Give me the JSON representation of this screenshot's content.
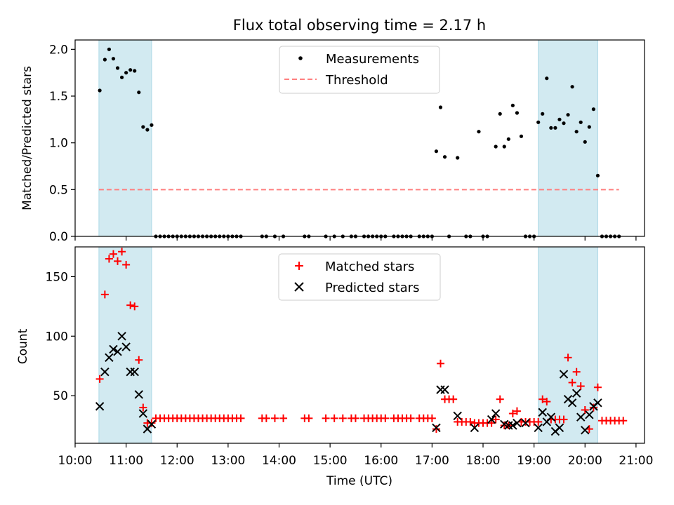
{
  "figure": {
    "title": "Flux total observing time = 2.17 h",
    "xlabel": "Time (UTC)"
  },
  "colors": {
    "shade": "#add8e6",
    "measurement": "#000000",
    "threshold": "#ff7f7f",
    "matched": "#ff0000",
    "predicted": "#000000"
  },
  "chart_data": [
    {
      "type": "scatter",
      "ylabel": "Matched/Predicted stars",
      "xlim": [
        "10:00",
        "21:10"
      ],
      "ylim": [
        0,
        2.1
      ],
      "y_ticks": [
        0.0,
        0.5,
        1.0,
        1.5,
        2.0
      ],
      "legend": "top-center",
      "legend_entries": [
        "Measurements",
        "Threshold"
      ],
      "shaded_intervals": [
        [
          "10:28",
          "11:30"
        ],
        [
          "19:05",
          "20:15"
        ]
      ],
      "threshold": {
        "value": 0.5,
        "x_start": "10:28",
        "x_end": "20:40",
        "label": "Threshold"
      },
      "series": [
        {
          "name": "Measurements",
          "points": [
            [
              "10:29",
              1.56
            ],
            [
              "10:35",
              1.89
            ],
            [
              "10:40",
              2.0
            ],
            [
              "10:45",
              1.9
            ],
            [
              "10:50",
              1.8
            ],
            [
              "10:55",
              1.7
            ],
            [
              "11:00",
              1.75
            ],
            [
              "11:05",
              1.78
            ],
            [
              "11:10",
              1.77
            ],
            [
              "11:15",
              1.54
            ],
            [
              "11:20",
              1.17
            ],
            [
              "11:25",
              1.14
            ],
            [
              "11:30",
              1.19
            ],
            [
              "11:35",
              0
            ],
            [
              "11:40",
              0
            ],
            [
              "11:45",
              0
            ],
            [
              "11:50",
              0
            ],
            [
              "11:55",
              0
            ],
            [
              "12:00",
              0
            ],
            [
              "12:05",
              0
            ],
            [
              "12:10",
              0
            ],
            [
              "12:15",
              0
            ],
            [
              "12:20",
              0
            ],
            [
              "12:25",
              0
            ],
            [
              "12:30",
              0
            ],
            [
              "12:35",
              0
            ],
            [
              "12:40",
              0
            ],
            [
              "12:45",
              0
            ],
            [
              "12:50",
              0
            ],
            [
              "12:55",
              0
            ],
            [
              "13:00",
              0
            ],
            [
              "13:05",
              0
            ],
            [
              "13:10",
              0
            ],
            [
              "13:15",
              0
            ],
            [
              "13:40",
              0
            ],
            [
              "13:45",
              0
            ],
            [
              "13:55",
              0
            ],
            [
              "14:05",
              0
            ],
            [
              "14:30",
              0
            ],
            [
              "14:35",
              0
            ],
            [
              "14:55",
              0
            ],
            [
              "15:05",
              0
            ],
            [
              "15:15",
              0
            ],
            [
              "15:25",
              0
            ],
            [
              "15:30",
              0
            ],
            [
              "15:40",
              0
            ],
            [
              "15:45",
              0
            ],
            [
              "15:50",
              0
            ],
            [
              "15:55",
              0
            ],
            [
              "16:00",
              0
            ],
            [
              "16:05",
              0
            ],
            [
              "16:15",
              0
            ],
            [
              "16:20",
              0
            ],
            [
              "16:25",
              0
            ],
            [
              "16:30",
              0
            ],
            [
              "16:35",
              0
            ],
            [
              "16:45",
              0
            ],
            [
              "16:50",
              0
            ],
            [
              "16:55",
              0
            ],
            [
              "17:00",
              0
            ],
            [
              "17:05",
              0.91
            ],
            [
              "17:10",
              1.38
            ],
            [
              "17:15",
              0.85
            ],
            [
              "17:20",
              0
            ],
            [
              "17:30",
              0.84
            ],
            [
              "17:40",
              0
            ],
            [
              "17:45",
              0
            ],
            [
              "17:55",
              1.12
            ],
            [
              "18:00",
              0
            ],
            [
              "18:05",
              0
            ],
            [
              "18:15",
              0.96
            ],
            [
              "18:20",
              1.31
            ],
            [
              "18:25",
              0.96
            ],
            [
              "18:30",
              1.04
            ],
            [
              "18:35",
              1.4
            ],
            [
              "18:40",
              1.32
            ],
            [
              "18:45",
              1.07
            ],
            [
              "18:50",
              0
            ],
            [
              "18:55",
              0
            ],
            [
              "19:00",
              0
            ],
            [
              "19:05",
              1.22
            ],
            [
              "19:10",
              1.31
            ],
            [
              "19:15",
              1.69
            ],
            [
              "19:20",
              1.16
            ],
            [
              "19:25",
              1.16
            ],
            [
              "19:30",
              1.25
            ],
            [
              "19:35",
              1.21
            ],
            [
              "19:40",
              1.3
            ],
            [
              "19:45",
              1.6
            ],
            [
              "19:50",
              1.12
            ],
            [
              "19:55",
              1.22
            ],
            [
              "20:00",
              1.01
            ],
            [
              "20:05",
              1.17
            ],
            [
              "20:10",
              1.36
            ],
            [
              "20:15",
              0.65
            ],
            [
              "20:20",
              0
            ],
            [
              "20:25",
              0
            ],
            [
              "20:30",
              0
            ],
            [
              "20:35",
              0
            ],
            [
              "20:40",
              0
            ]
          ]
        }
      ]
    },
    {
      "type": "scatter",
      "ylabel": "Count",
      "xlim": [
        "10:00",
        "21:10"
      ],
      "ylim": [
        10,
        175
      ],
      "y_ticks": [
        50,
        100,
        150
      ],
      "x_ticks": [
        "10:00",
        "11:00",
        "12:00",
        "13:00",
        "14:00",
        "15:00",
        "16:00",
        "17:00",
        "18:00",
        "19:00",
        "20:00",
        "21:00"
      ],
      "legend": "top-center",
      "legend_entries": [
        "Matched stars",
        "Predicted stars"
      ],
      "shaded_intervals": [
        [
          "10:28",
          "11:30"
        ],
        [
          "19:05",
          "20:15"
        ]
      ],
      "series": [
        {
          "name": "Matched stars",
          "marker": "plus",
          "points": [
            [
              "10:29",
              64
            ],
            [
              "10:35",
              135
            ],
            [
              "10:40",
              165
            ],
            [
              "10:45",
              169
            ],
            [
              "10:50",
              163
            ],
            [
              "10:55",
              171
            ],
            [
              "11:00",
              160
            ],
            [
              "11:05",
              126
            ],
            [
              "11:10",
              125
            ],
            [
              "11:15",
              80
            ],
            [
              "11:20",
              40
            ],
            [
              "11:25",
              27
            ],
            [
              "11:30",
              27
            ],
            [
              "11:35",
              31
            ],
            [
              "11:40",
              31
            ],
            [
              "11:45",
              31
            ],
            [
              "11:50",
              31
            ],
            [
              "11:55",
              31
            ],
            [
              "12:00",
              31
            ],
            [
              "12:05",
              31
            ],
            [
              "12:10",
              31
            ],
            [
              "12:15",
              31
            ],
            [
              "12:20",
              31
            ],
            [
              "12:25",
              31
            ],
            [
              "12:30",
              31
            ],
            [
              "12:35",
              31
            ],
            [
              "12:40",
              31
            ],
            [
              "12:45",
              31
            ],
            [
              "12:50",
              31
            ],
            [
              "12:55",
              31
            ],
            [
              "13:00",
              31
            ],
            [
              "13:05",
              31
            ],
            [
              "13:10",
              31
            ],
            [
              "13:15",
              31
            ],
            [
              "13:40",
              31
            ],
            [
              "13:45",
              31
            ],
            [
              "13:55",
              31
            ],
            [
              "14:05",
              31
            ],
            [
              "14:30",
              31
            ],
            [
              "14:35",
              31
            ],
            [
              "14:55",
              31
            ],
            [
              "15:05",
              31
            ],
            [
              "15:15",
              31
            ],
            [
              "15:25",
              31
            ],
            [
              "15:30",
              31
            ],
            [
              "15:40",
              31
            ],
            [
              "15:45",
              31
            ],
            [
              "15:50",
              31
            ],
            [
              "15:55",
              31
            ],
            [
              "16:00",
              31
            ],
            [
              "16:05",
              31
            ],
            [
              "16:15",
              31
            ],
            [
              "16:20",
              31
            ],
            [
              "16:25",
              31
            ],
            [
              "16:30",
              31
            ],
            [
              "16:35",
              31
            ],
            [
              "16:45",
              31
            ],
            [
              "16:50",
              31
            ],
            [
              "16:55",
              31
            ],
            [
              "17:00",
              31
            ],
            [
              "17:05",
              22
            ],
            [
              "17:10",
              77
            ],
            [
              "17:15",
              47
            ],
            [
              "17:20",
              47
            ],
            [
              "17:25",
              47
            ],
            [
              "17:30",
              28
            ],
            [
              "17:35",
              28
            ],
            [
              "17:40",
              28
            ],
            [
              "17:45",
              28
            ],
            [
              "17:50",
              27
            ],
            [
              "17:55",
              27
            ],
            [
              "18:00",
              27
            ],
            [
              "18:05",
              27
            ],
            [
              "18:10",
              27
            ],
            [
              "18:15",
              30
            ],
            [
              "18:20",
              47
            ],
            [
              "18:25",
              25
            ],
            [
              "18:30",
              25
            ],
            [
              "18:35",
              35
            ],
            [
              "18:40",
              37
            ],
            [
              "18:45",
              28
            ],
            [
              "18:50",
              28
            ],
            [
              "18:55",
              28
            ],
            [
              "19:00",
              28
            ],
            [
              "19:05",
              28
            ],
            [
              "19:10",
              47
            ],
            [
              "19:15",
              45
            ],
            [
              "19:20",
              30
            ],
            [
              "19:25",
              30
            ],
            [
              "19:30",
              30
            ],
            [
              "19:35",
              30
            ],
            [
              "19:40",
              82
            ],
            [
              "19:45",
              61
            ],
            [
              "19:50",
              70
            ],
            [
              "19:55",
              58
            ],
            [
              "20:00",
              38
            ],
            [
              "20:05",
              22
            ],
            [
              "20:10",
              40
            ],
            [
              "20:15",
              57
            ],
            [
              "20:20",
              29
            ],
            [
              "20:25",
              29
            ],
            [
              "20:30",
              29
            ],
            [
              "20:35",
              29
            ],
            [
              "20:40",
              29
            ],
            [
              "20:45",
              29
            ]
          ]
        },
        {
          "name": "Predicted stars",
          "marker": "x",
          "points": [
            [
              "10:29",
              41
            ],
            [
              "10:35",
              70
            ],
            [
              "10:40",
              82
            ],
            [
              "10:45",
              89
            ],
            [
              "10:50",
              87
            ],
            [
              "10:55",
              100
            ],
            [
              "11:00",
              91
            ],
            [
              "11:05",
              70
            ],
            [
              "11:10",
              70
            ],
            [
              "11:15",
              51
            ],
            [
              "11:20",
              35
            ],
            [
              "11:25",
              22
            ],
            [
              "11:30",
              26
            ],
            [
              "17:05",
              23
            ],
            [
              "17:10",
              55
            ],
            [
              "17:15",
              55
            ],
            [
              "17:30",
              33
            ],
            [
              "17:50",
              23
            ],
            [
              "18:10",
              30
            ],
            [
              "18:15",
              35
            ],
            [
              "18:25",
              26
            ],
            [
              "18:30",
              25
            ],
            [
              "18:35",
              25
            ],
            [
              "18:40",
              27
            ],
            [
              "18:50",
              27
            ],
            [
              "19:05",
              23
            ],
            [
              "19:10",
              36
            ],
            [
              "19:15",
              28
            ],
            [
              "19:20",
              32
            ],
            [
              "19:25",
              20
            ],
            [
              "19:30",
              23
            ],
            [
              "19:35",
              68
            ],
            [
              "19:40",
              47
            ],
            [
              "19:45",
              44
            ],
            [
              "19:50",
              52
            ],
            [
              "19:55",
              32
            ],
            [
              "20:00",
              21
            ],
            [
              "20:05",
              34
            ],
            [
              "20:10",
              41
            ],
            [
              "20:15",
              44
            ]
          ]
        }
      ]
    }
  ]
}
